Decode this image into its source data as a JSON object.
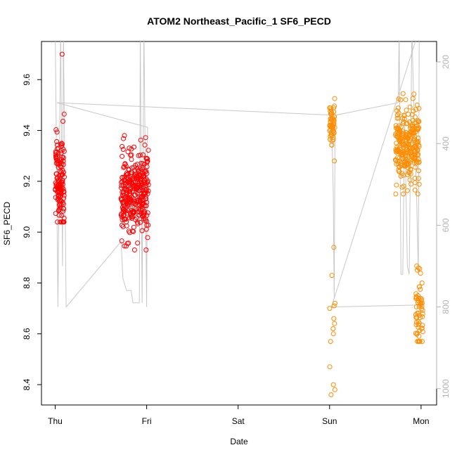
{
  "chart_data": {
    "type": "scatter",
    "title": "ATOM2 Northeast_Pacific_1 SF6_PECD",
    "xlabel": "Date",
    "ylabel": "SF6_PECD",
    "x_ticks": [
      {
        "day": 0,
        "label": "Thu"
      },
      {
        "day": 1,
        "label": "Fri"
      },
      {
        "day": 2,
        "label": "Sat"
      },
      {
        "day": 3,
        "label": "Sun"
      },
      {
        "day": 4,
        "label": "Mon"
      }
    ],
    "xlim": [
      -0.15,
      4.17
    ],
    "ylim": [
      8.32,
      9.75
    ],
    "y_ticks": [
      8.4,
      8.6,
      8.8,
      9.0,
      9.2,
      9.4,
      9.6
    ],
    "y2_ticks": [
      200,
      400,
      600,
      800,
      1000
    ],
    "y2lim": [
      1040,
      150
    ],
    "y2_color": "#b3b3b3",
    "grid": false,
    "series": [
      {
        "color": "#ff0000",
        "segments": [
          {
            "x0": 0.0,
            "x1": 0.1,
            "n": 140,
            "ymin": 9.04,
            "ymax": 9.5,
            "mu": 9.2,
            "sd": 0.1,
            "outliers": [
              9.7
            ]
          },
          {
            "x0": 0.72,
            "x1": 1.02,
            "n": 330,
            "ymin": 8.93,
            "ymax": 9.38,
            "mu": 9.15,
            "sd": 0.08,
            "outliers": []
          }
        ]
      },
      {
        "color": "#ff8c00",
        "segments": [
          {
            "x0": 3.0,
            "x1": 3.06,
            "n": 55,
            "ymin": 9.28,
            "ymax": 9.53,
            "mu": 9.42,
            "sd": 0.05,
            "outliers": [
              8.36,
              8.38,
              8.4,
              8.47,
              8.57,
              8.6,
              8.62,
              8.64,
              8.66,
              8.7,
              8.71,
              8.72,
              8.83,
              8.94
            ]
          },
          {
            "x0": 3.72,
            "x1": 3.98,
            "n": 260,
            "ymin": 9.15,
            "ymax": 9.55,
            "mu": 9.33,
            "sd": 0.08,
            "outliers": []
          },
          {
            "x0": 3.94,
            "x1": 4.02,
            "n": 60,
            "ymin": 8.57,
            "ymax": 9.1,
            "mu": 8.7,
            "sd": 0.1,
            "outliers": []
          }
        ]
      }
    ],
    "pressure_line": {
      "color": "#c8c8c8",
      "points": [
        [
          0.0,
          120
        ],
        [
          0.01,
          340
        ],
        [
          0.03,
          800
        ],
        [
          0.05,
          340
        ],
        [
          0.06,
          120
        ],
        [
          0.08,
          700
        ],
        [
          0.09,
          120
        ],
        [
          0.1,
          350
        ],
        [
          0.12,
          800
        ],
        [
          0.12,
          800
        ],
        [
          0.72,
          640
        ],
        [
          0.72,
          640
        ],
        [
          0.74,
          730
        ],
        [
          0.78,
          760
        ],
        [
          0.83,
          760
        ],
        [
          0.85,
          790
        ],
        [
          0.92,
          790
        ],
        [
          0.93,
          120
        ],
        [
          0.95,
          790
        ],
        [
          0.97,
          120
        ],
        [
          0.98,
          340
        ],
        [
          1.0,
          800
        ],
        [
          1.01,
          360
        ],
        [
          1.01,
          360
        ],
        [
          0.02,
          300
        ],
        [
          3.0,
          330
        ],
        [
          3.02,
          320
        ],
        [
          3.04,
          520
        ],
        [
          3.05,
          780
        ],
        [
          3.06,
          340
        ],
        [
          3.07,
          330
        ],
        [
          3.07,
          330
        ],
        [
          3.75,
          300
        ],
        [
          3.76,
          120
        ],
        [
          3.78,
          720
        ],
        [
          3.8,
          720
        ],
        [
          3.82,
          340
        ],
        [
          3.85,
          700
        ],
        [
          3.87,
          720
        ],
        [
          3.9,
          120
        ],
        [
          3.92,
          310
        ],
        [
          3.95,
          520
        ],
        [
          3.97,
          720
        ],
        [
          3.98,
          120
        ],
        [
          3.02,
          800
        ],
        [
          4.0,
          795
        ]
      ]
    }
  }
}
